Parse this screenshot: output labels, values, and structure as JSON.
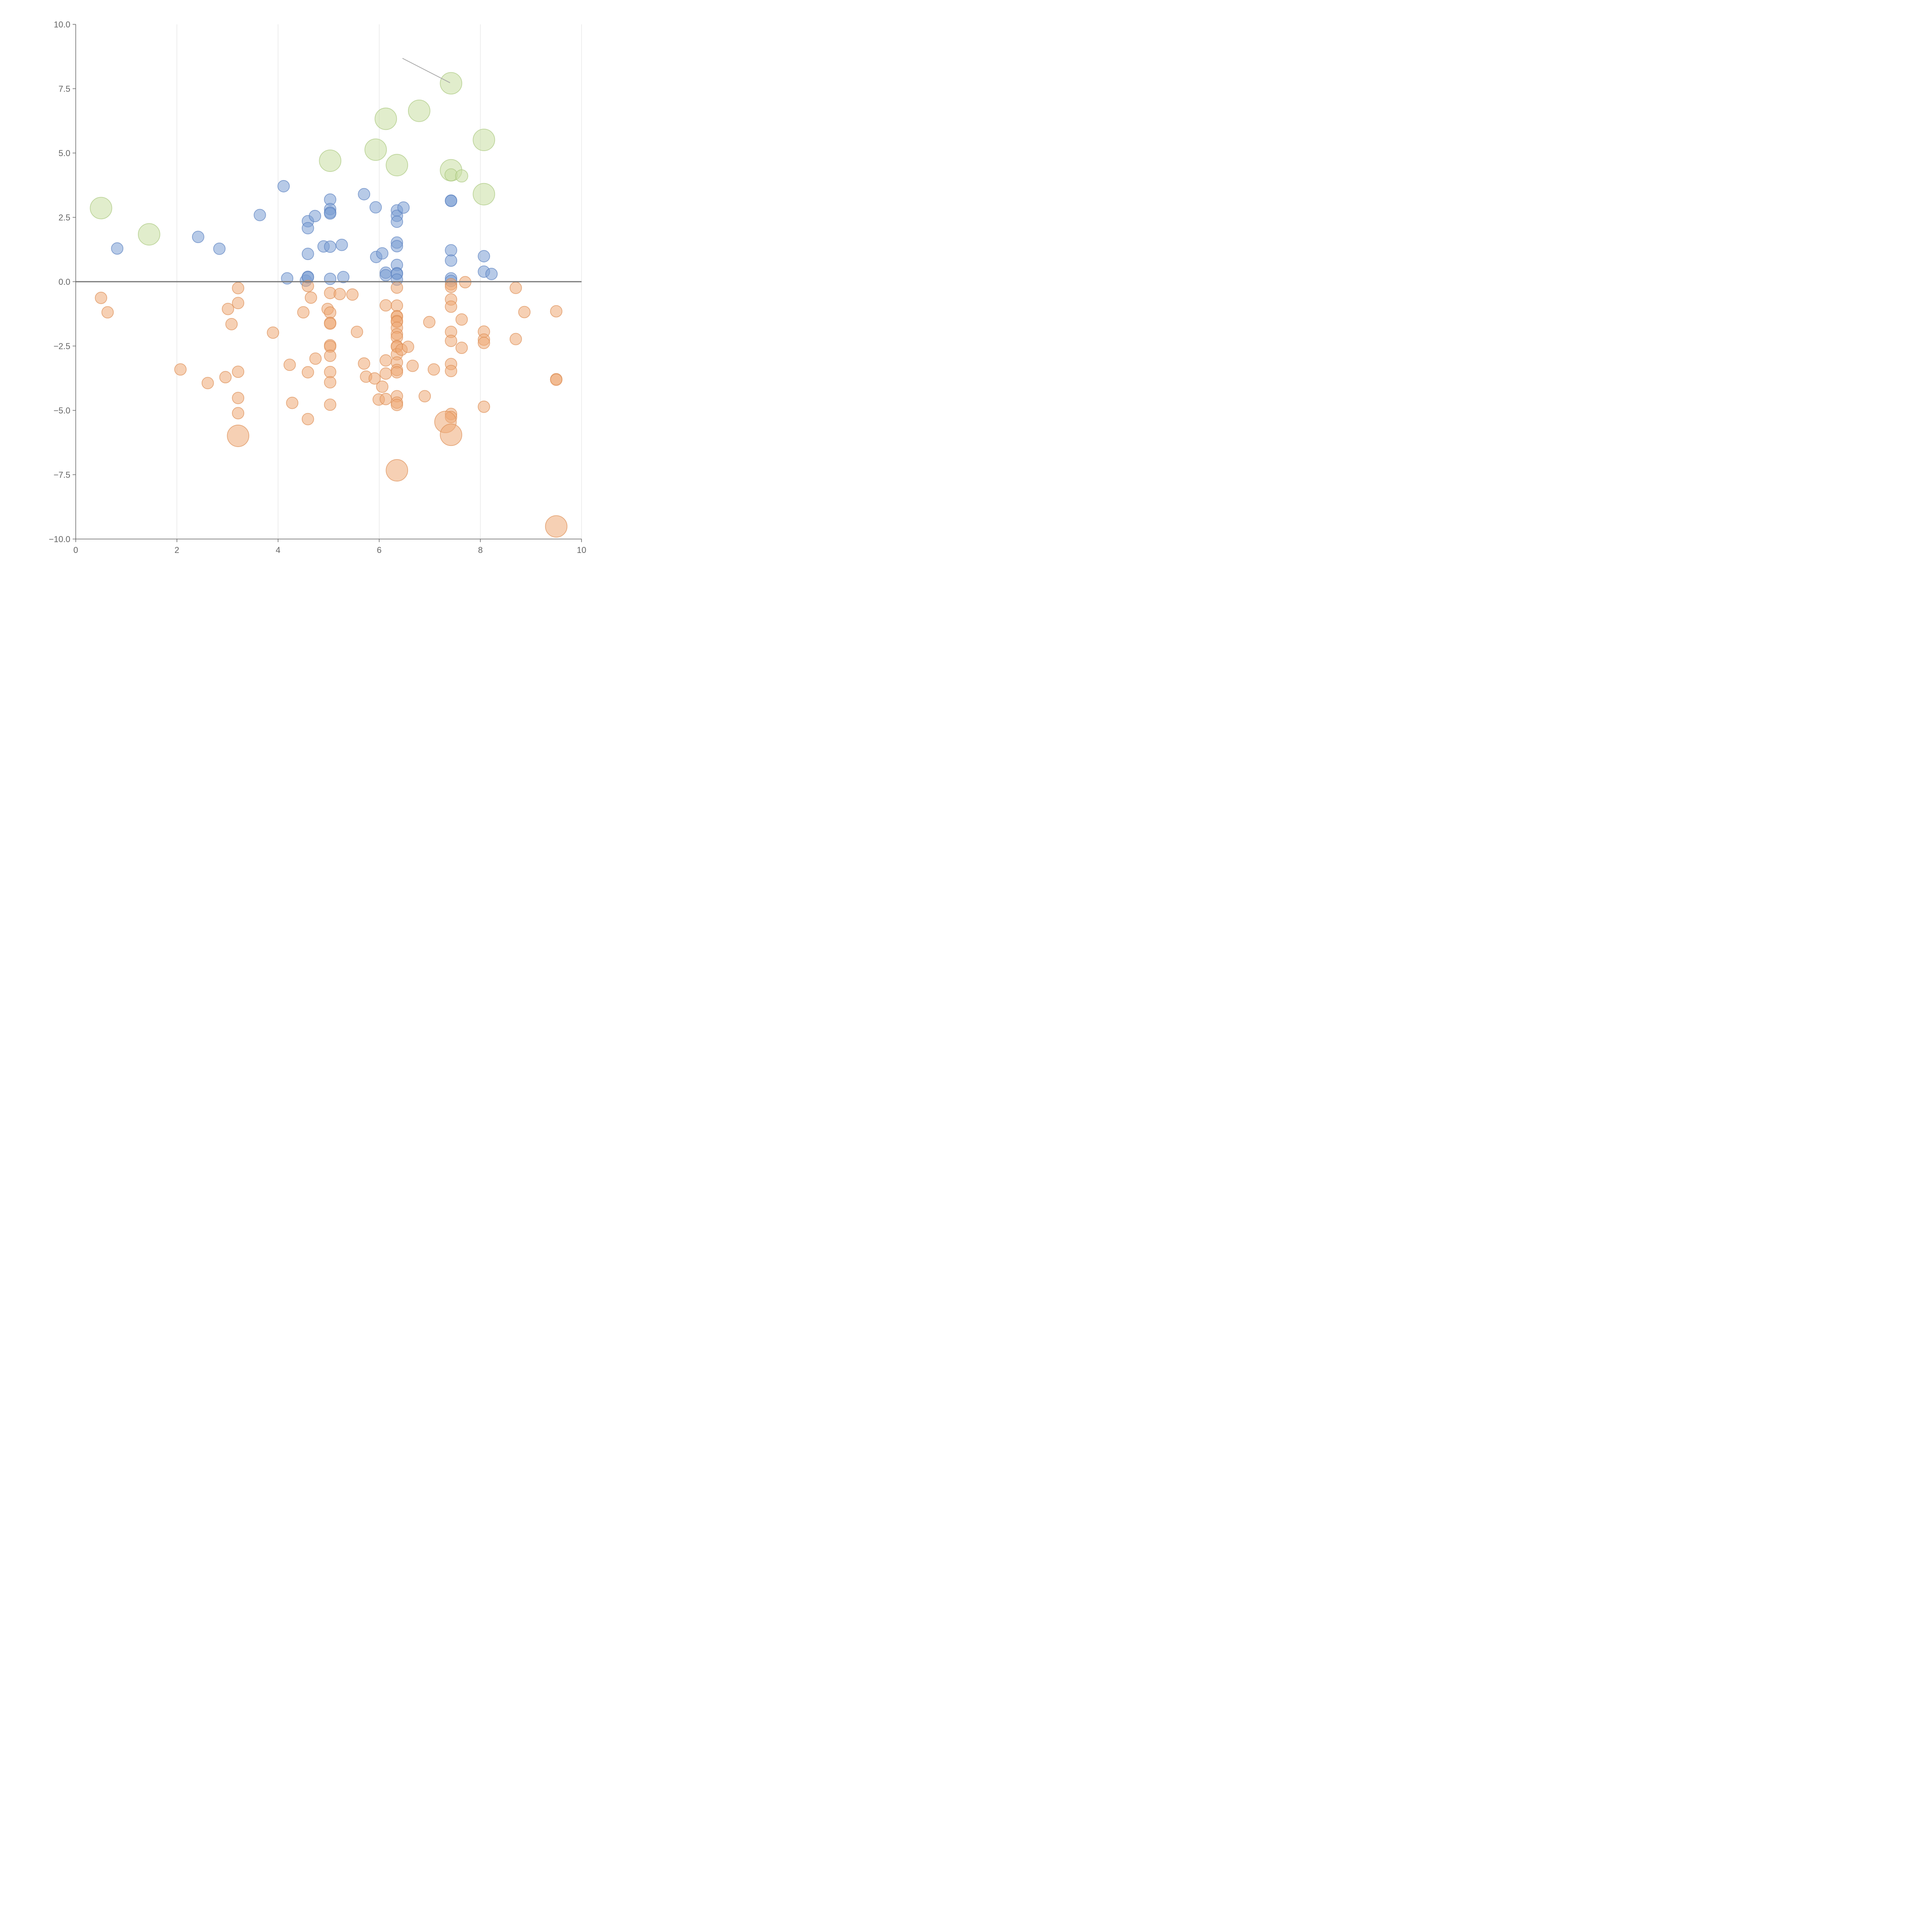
{
  "chart_data": {
    "type": "scatter",
    "title": "",
    "xlabel": "",
    "ylabel": "",
    "xlim": [
      0,
      10
    ],
    "ylim": [
      -10,
      10
    ],
    "x_ticks": [
      0,
      2,
      4,
      6,
      8,
      10
    ],
    "x_tick_labels": [
      "0",
      "2",
      "4",
      "6",
      "8",
      "10"
    ],
    "y_ticks": [
      10,
      7.5,
      5,
      2.5,
      0,
      -2.5,
      -5,
      -7.5,
      -10
    ],
    "y_tick_labels": [
      "10.0",
      "7.5",
      "5.0",
      "2.5",
      "0.0",
      "−2.5",
      "−5.0",
      "−7.5",
      "−10.0"
    ],
    "grid": "vertical",
    "reference_line_y": 0,
    "series": [
      {
        "name": "positive-small",
        "color": "#7b9fd4",
        "stroke": "#5b82c0",
        "points": [
          [
            0.82,
            1.29
          ],
          [
            2.42,
            1.74
          ],
          [
            2.84,
            1.28
          ],
          [
            3.64,
            2.59
          ],
          [
            4.11,
            3.71
          ],
          [
            4.18,
            0.13
          ],
          [
            4.55,
            0.04
          ],
          [
            4.59,
            0.19
          ],
          [
            4.59,
            0.17
          ],
          [
            4.59,
            2.35
          ],
          [
            4.59,
            2.08
          ],
          [
            4.59,
            1.08
          ],
          [
            4.73,
            2.55
          ],
          [
            4.9,
            1.37
          ],
          [
            5.03,
            3.19
          ],
          [
            5.03,
            2.82
          ],
          [
            5.03,
            2.69
          ],
          [
            5.03,
            2.65
          ],
          [
            5.03,
            1.36
          ],
          [
            5.03,
            0.11
          ],
          [
            5.26,
            1.43
          ],
          [
            5.29,
            0.18
          ],
          [
            5.7,
            3.4
          ],
          [
            5.93,
            2.89
          ],
          [
            5.94,
            0.96
          ],
          [
            6.06,
            1.1
          ],
          [
            6.13,
            0.35
          ],
          [
            6.13,
            0.25
          ],
          [
            6.35,
            2.77
          ],
          [
            6.35,
            2.56
          ],
          [
            6.35,
            2.33
          ],
          [
            6.35,
            1.52
          ],
          [
            6.35,
            1.38
          ],
          [
            6.35,
            0.65
          ],
          [
            6.35,
            0.33
          ],
          [
            6.35,
            0.3
          ],
          [
            6.35,
            0.08
          ],
          [
            6.48,
            2.88
          ],
          [
            7.42,
            3.15
          ],
          [
            7.42,
            3.14
          ],
          [
            7.42,
            1.22
          ],
          [
            7.42,
            0.82
          ],
          [
            7.42,
            0.13
          ],
          [
            7.42,
            0.03
          ],
          [
            8.07,
            0.99
          ],
          [
            8.07,
            0.39
          ],
          [
            8.22,
            0.3
          ]
        ]
      },
      {
        "name": "negative-small",
        "color": "#eeaa77",
        "stroke": "#dd8f55",
        "points": [
          [
            0.5,
            -0.63
          ],
          [
            0.63,
            -1.19
          ],
          [
            2.07,
            -3.41
          ],
          [
            2.61,
            -3.94
          ],
          [
            2.96,
            -3.71
          ],
          [
            3.01,
            -1.06
          ],
          [
            3.08,
            -1.65
          ],
          [
            3.21,
            -0.25
          ],
          [
            3.21,
            -0.83
          ],
          [
            3.21,
            -3.5
          ],
          [
            3.21,
            -4.52
          ],
          [
            3.21,
            -5.11
          ],
          [
            3.9,
            -1.98
          ],
          [
            4.23,
            -3.23
          ],
          [
            4.28,
            -4.71
          ],
          [
            4.5,
            -1.19
          ],
          [
            4.59,
            -0.17
          ],
          [
            4.59,
            -3.52
          ],
          [
            4.59,
            -5.34
          ],
          [
            4.65,
            -0.62
          ],
          [
            4.74,
            -2.99
          ],
          [
            4.98,
            -1.06
          ],
          [
            5.03,
            -0.44
          ],
          [
            5.03,
            -1.2
          ],
          [
            5.03,
            -1.6
          ],
          [
            5.03,
            -1.63
          ],
          [
            5.03,
            -2.47
          ],
          [
            5.03,
            -2.52
          ],
          [
            5.03,
            -2.88
          ],
          [
            5.03,
            -3.51
          ],
          [
            5.03,
            -3.91
          ],
          [
            5.03,
            -4.78
          ],
          [
            5.22,
            -0.48
          ],
          [
            5.47,
            -0.5
          ],
          [
            5.56,
            -1.95
          ],
          [
            5.7,
            -3.18
          ],
          [
            5.74,
            -3.69
          ],
          [
            5.91,
            -3.76
          ],
          [
            5.99,
            -4.58
          ],
          [
            6.06,
            -4.08
          ],
          [
            6.13,
            -0.92
          ],
          [
            6.13,
            -3.06
          ],
          [
            6.13,
            -3.57
          ],
          [
            6.13,
            -4.56
          ],
          [
            6.35,
            -0.23
          ],
          [
            6.35,
            -0.93
          ],
          [
            6.35,
            -1.34
          ],
          [
            6.35,
            -1.36
          ],
          [
            6.35,
            -1.53
          ],
          [
            6.35,
            -1.56
          ],
          [
            6.35,
            -1.79
          ],
          [
            6.35,
            -2.04
          ],
          [
            6.35,
            -2.16
          ],
          [
            6.35,
            -2.5
          ],
          [
            6.35,
            -2.53
          ],
          [
            6.35,
            -2.82
          ],
          [
            6.35,
            -3.14
          ],
          [
            6.35,
            -3.43
          ],
          [
            6.35,
            -3.52
          ],
          [
            6.35,
            -4.45
          ],
          [
            6.35,
            -4.7
          ],
          [
            6.35,
            -4.79
          ],
          [
            6.44,
            -2.64
          ],
          [
            6.57,
            -2.53
          ],
          [
            6.66,
            -3.27
          ],
          [
            6.9,
            -4.45
          ],
          [
            6.99,
            -1.57
          ],
          [
            7.08,
            -3.41
          ],
          [
            7.42,
            -0.1
          ],
          [
            7.42,
            -0.2
          ],
          [
            7.42,
            -0.69
          ],
          [
            7.42,
            -0.97
          ],
          [
            7.42,
            -1.95
          ],
          [
            7.42,
            -2.3
          ],
          [
            7.42,
            -3.2
          ],
          [
            7.42,
            -3.47
          ],
          [
            7.42,
            -5.14
          ],
          [
            7.42,
            -5.26
          ],
          [
            7.63,
            -1.47
          ],
          [
            7.63,
            -2.57
          ],
          [
            7.7,
            -0.02
          ],
          [
            8.07,
            -1.94
          ],
          [
            8.07,
            -2.25
          ],
          [
            8.07,
            -2.38
          ],
          [
            8.07,
            -4.86
          ],
          [
            8.7,
            -0.24
          ],
          [
            8.7,
            -2.23
          ],
          [
            8.87,
            -1.18
          ],
          [
            9.5,
            -1.15
          ],
          [
            9.5,
            -3.79
          ],
          [
            9.5,
            -3.81
          ]
        ]
      },
      {
        "name": "positive-large",
        "color": "#c8dea2",
        "stroke": "#a9c87e",
        "points": [
          [
            0.5,
            2.86
          ],
          [
            1.45,
            1.84
          ],
          [
            5.03,
            4.7
          ],
          [
            5.93,
            5.13
          ],
          [
            6.13,
            6.33
          ],
          [
            6.35,
            4.53
          ],
          [
            6.79,
            6.64
          ],
          [
            7.42,
            7.71
          ],
          [
            7.42,
            4.33
          ],
          [
            8.07,
            5.51
          ],
          [
            8.07,
            3.4
          ]
        ]
      },
      {
        "name": "positive-medium",
        "color": "#c8dea2",
        "stroke": "#a9c87e",
        "points": [
          [
            7.42,
            4.15
          ],
          [
            7.63,
            4.11
          ]
        ]
      },
      {
        "name": "negative-large",
        "color": "#eeaa77",
        "stroke": "#dd8f55",
        "points": [
          [
            3.21,
            -5.99
          ],
          [
            6.35,
            -7.33
          ],
          [
            7.31,
            -5.45
          ],
          [
            7.42,
            -5.95
          ],
          [
            9.5,
            -9.51
          ]
        ]
      }
    ],
    "annotation_line": {
      "from": [
        6.46,
        8.68
      ],
      "to": [
        7.4,
        7.73
      ]
    }
  }
}
